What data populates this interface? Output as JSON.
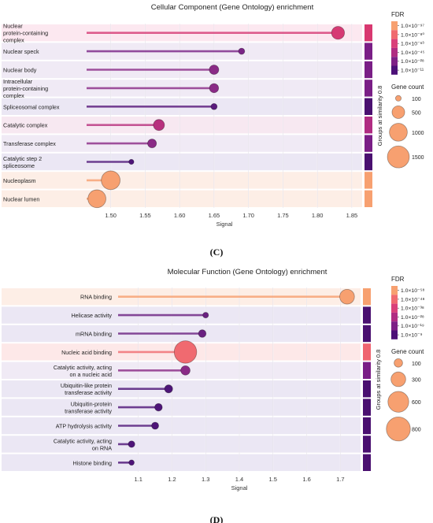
{
  "chart_data": [
    {
      "type": "lollipop",
      "title": "Cellular Component (Gene Ontology) enrichment",
      "xlabel": "Signal",
      "xlim": [
        1.465,
        1.865
      ],
      "xticks": [
        "1.50",
        "1.55",
        "1.60",
        "1.65",
        "1.70",
        "1.75",
        "1.80",
        "1.85"
      ],
      "xtick_values": [
        1.5,
        1.55,
        1.6,
        1.65,
        1.7,
        1.75,
        1.8,
        1.85
      ],
      "group_axis_label": "Groups at similarity 0.8",
      "panel_letter": "(C)",
      "fdr_legend": {
        "title": "FDR",
        "entries": [
          "1.0×10⁻⁹⁷",
          "1.0×10⁻⁸⁰",
          "1.0×10⁻⁶³",
          "1.0×10⁻⁴⁵",
          "1.0×10⁻²⁸",
          "1.0×10⁻¹¹"
        ],
        "colors": [
          "#f7a070",
          "#f06a70",
          "#d9407a",
          "#b02c82",
          "#7e2086",
          "#4c1078"
        ]
      },
      "size_legend": {
        "title": "Gene count",
        "values": [
          100,
          500,
          1000,
          1500
        ]
      },
      "terms": [
        {
          "label": "Nuclear protein-containing complex",
          "signal": 1.83,
          "gene_count": 520,
          "color": "#d63a74",
          "group_color": "#d83870",
          "band": "#fce8f0"
        },
        {
          "label": "Nuclear speck",
          "signal": 1.69,
          "gene_count": 120,
          "color": "#7a2486",
          "group_color": "#7a1e86",
          "band": "#f0eaf5"
        },
        {
          "label": "Nuclear body",
          "signal": 1.65,
          "gene_count": 280,
          "color": "#8a2a86",
          "group_color": "#7a1e86",
          "band": "#f0eaf5"
        },
        {
          "label": "Intracellular protein-containing complex",
          "signal": 1.65,
          "gene_count": 260,
          "color": "#8a2a86",
          "group_color": "#7a1e86",
          "band": "#f0eaf5"
        },
        {
          "label": "Spliceosomal complex",
          "signal": 1.65,
          "gene_count": 120,
          "color": "#5a1a7c",
          "group_color": "#4a1070",
          "band": "#ebe7f4"
        },
        {
          "label": "Catalytic complex",
          "signal": 1.57,
          "gene_count": 380,
          "color": "#b8307e",
          "group_color": "#b02c82",
          "band": "#f7e8f1"
        },
        {
          "label": "Transferase complex",
          "signal": 1.56,
          "gene_count": 240,
          "color": "#8a2a86",
          "group_color": "#7a1e86",
          "band": "#f0eaf5"
        },
        {
          "label": "Catalytic step 2 spliceosome",
          "signal": 1.53,
          "gene_count": 80,
          "color": "#4e1478",
          "group_color": "#4a1070",
          "band": "#ebe7f4"
        },
        {
          "label": "Nucleoplasm",
          "signal": 1.5,
          "gene_count": 1100,
          "color": "#f7a070",
          "group_color": "#f7a070",
          "band": "#fdeee6"
        },
        {
          "label": "Nuclear lumen",
          "signal": 1.48,
          "gene_count": 1000,
          "color": "#f7a070",
          "group_color": "#f7a070",
          "band": "#fdeee6"
        }
      ]
    },
    {
      "type": "lollipop",
      "title": "Molecular Function (Gene Ontology) enrichment",
      "xlabel": "Signal",
      "xlim": [
        1.04,
        1.76
      ],
      "xticks": [
        "1.1",
        "1.2",
        "1.3",
        "1.4",
        "1.5",
        "1.6",
        "1.7"
      ],
      "xtick_values": [
        1.1,
        1.2,
        1.3,
        1.4,
        1.5,
        1.6,
        1.7
      ],
      "group_axis_label": "Groups at similarity 0.8",
      "panel_letter": "(D)",
      "fdr_legend": {
        "title": "FDR",
        "entries": [
          "1.0×10⁻⁵⁸",
          "1.0×10⁻⁴⁸",
          "1.0×10⁻³⁸",
          "1.0×10⁻²⁸",
          "1.0×10⁻¹⁹",
          "1.0×10⁻⁹"
        ],
        "colors": [
          "#f7a070",
          "#f06a70",
          "#d9407a",
          "#b02c82",
          "#7e2086",
          "#4c1078"
        ]
      },
      "size_legend": {
        "title": "Gene count",
        "values": [
          100,
          300,
          600,
          800
        ]
      },
      "terms": [
        {
          "label": "RNA binding",
          "signal": 1.72,
          "gene_count": 300,
          "color": "#f7a070",
          "group_color": "#f7a070",
          "band": "#fdeee6"
        },
        {
          "label": "Helicase activity",
          "signal": 1.3,
          "gene_count": 45,
          "color": "#6a2080",
          "group_color": "#4a1070",
          "band": "#ebe7f4"
        },
        {
          "label": "mRNA binding",
          "signal": 1.29,
          "gene_count": 80,
          "color": "#6a2080",
          "group_color": "#4a1070",
          "band": "#ebe7f4"
        },
        {
          "label": "Nucleic acid binding",
          "signal": 1.24,
          "gene_count": 700,
          "color": "#f06a70",
          "group_color": "#ef6470",
          "band": "#fde8e8"
        },
        {
          "label": "Catalytic activity, acting on a nucleic acid",
          "signal": 1.24,
          "gene_count": 120,
          "color": "#8a2a86",
          "group_color": "#7a1e86",
          "band": "#f0eaf5"
        },
        {
          "label": "Ubiquitin-like protein transferase activity",
          "signal": 1.19,
          "gene_count": 90,
          "color": "#4e1478",
          "group_color": "#4a1070",
          "band": "#ebe7f4"
        },
        {
          "label": "Ubiquitin-protein transferase activity",
          "signal": 1.16,
          "gene_count": 80,
          "color": "#4e1478",
          "group_color": "#4a1070",
          "band": "#ebe7f4"
        },
        {
          "label": "ATP hydrolysis activity",
          "signal": 1.15,
          "gene_count": 70,
          "color": "#4e1478",
          "group_color": "#4a1070",
          "band": "#ebe7f4"
        },
        {
          "label": "Catalytic activity, acting on RNA",
          "signal": 1.08,
          "gene_count": 60,
          "color": "#4e1478",
          "group_color": "#4a1070",
          "band": "#ebe7f4"
        },
        {
          "label": "Histone binding",
          "signal": 1.08,
          "gene_count": 40,
          "color": "#4e1478",
          "group_color": "#4a1070",
          "band": "#ebe7f4"
        }
      ]
    }
  ]
}
